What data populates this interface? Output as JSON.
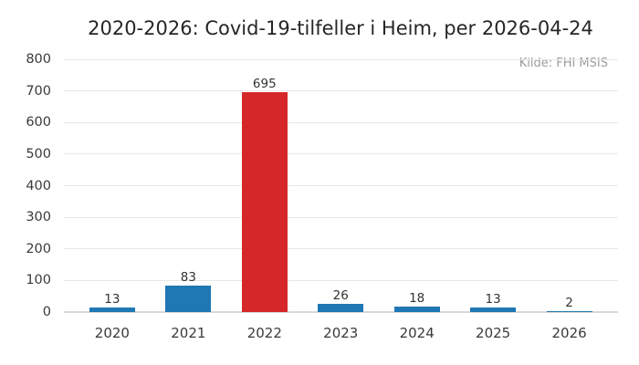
{
  "chart_data": {
    "type": "bar",
    "title": "2020-2026: Covid-19-tilfeller i Heim, per 2026-04-24",
    "source": "Kilde: FHI MSIS",
    "categories": [
      "2020",
      "2021",
      "2022",
      "2023",
      "2024",
      "2025",
      "2026"
    ],
    "values": [
      13,
      83,
      695,
      26,
      18,
      13,
      2
    ],
    "bar_value_labels": [
      "13",
      "83",
      "695",
      "26",
      "18",
      "13",
      "2"
    ],
    "bar_colors": [
      "#1f77b4",
      "#1f77b4",
      "#d62728",
      "#1f77b4",
      "#1f77b4",
      "#1f77b4",
      "#1f77b4"
    ],
    "yticks": [
      0,
      100,
      200,
      300,
      400,
      500,
      600,
      700,
      800
    ],
    "ylim": [
      0,
      800
    ],
    "grid": true,
    "legend_position": "none",
    "xlabel": "",
    "ylabel": "",
    "colors": {
      "bar_default": "#1f77b4",
      "bar_highlight": "#d62728",
      "gridline": "#e8e8e8",
      "axis_line": "#d9d9d9",
      "title_text": "#262626",
      "tick_text": "#3a3a3a",
      "value_text": "#333333",
      "source_text": "#9b9b9b",
      "background": "#ffffff"
    }
  }
}
